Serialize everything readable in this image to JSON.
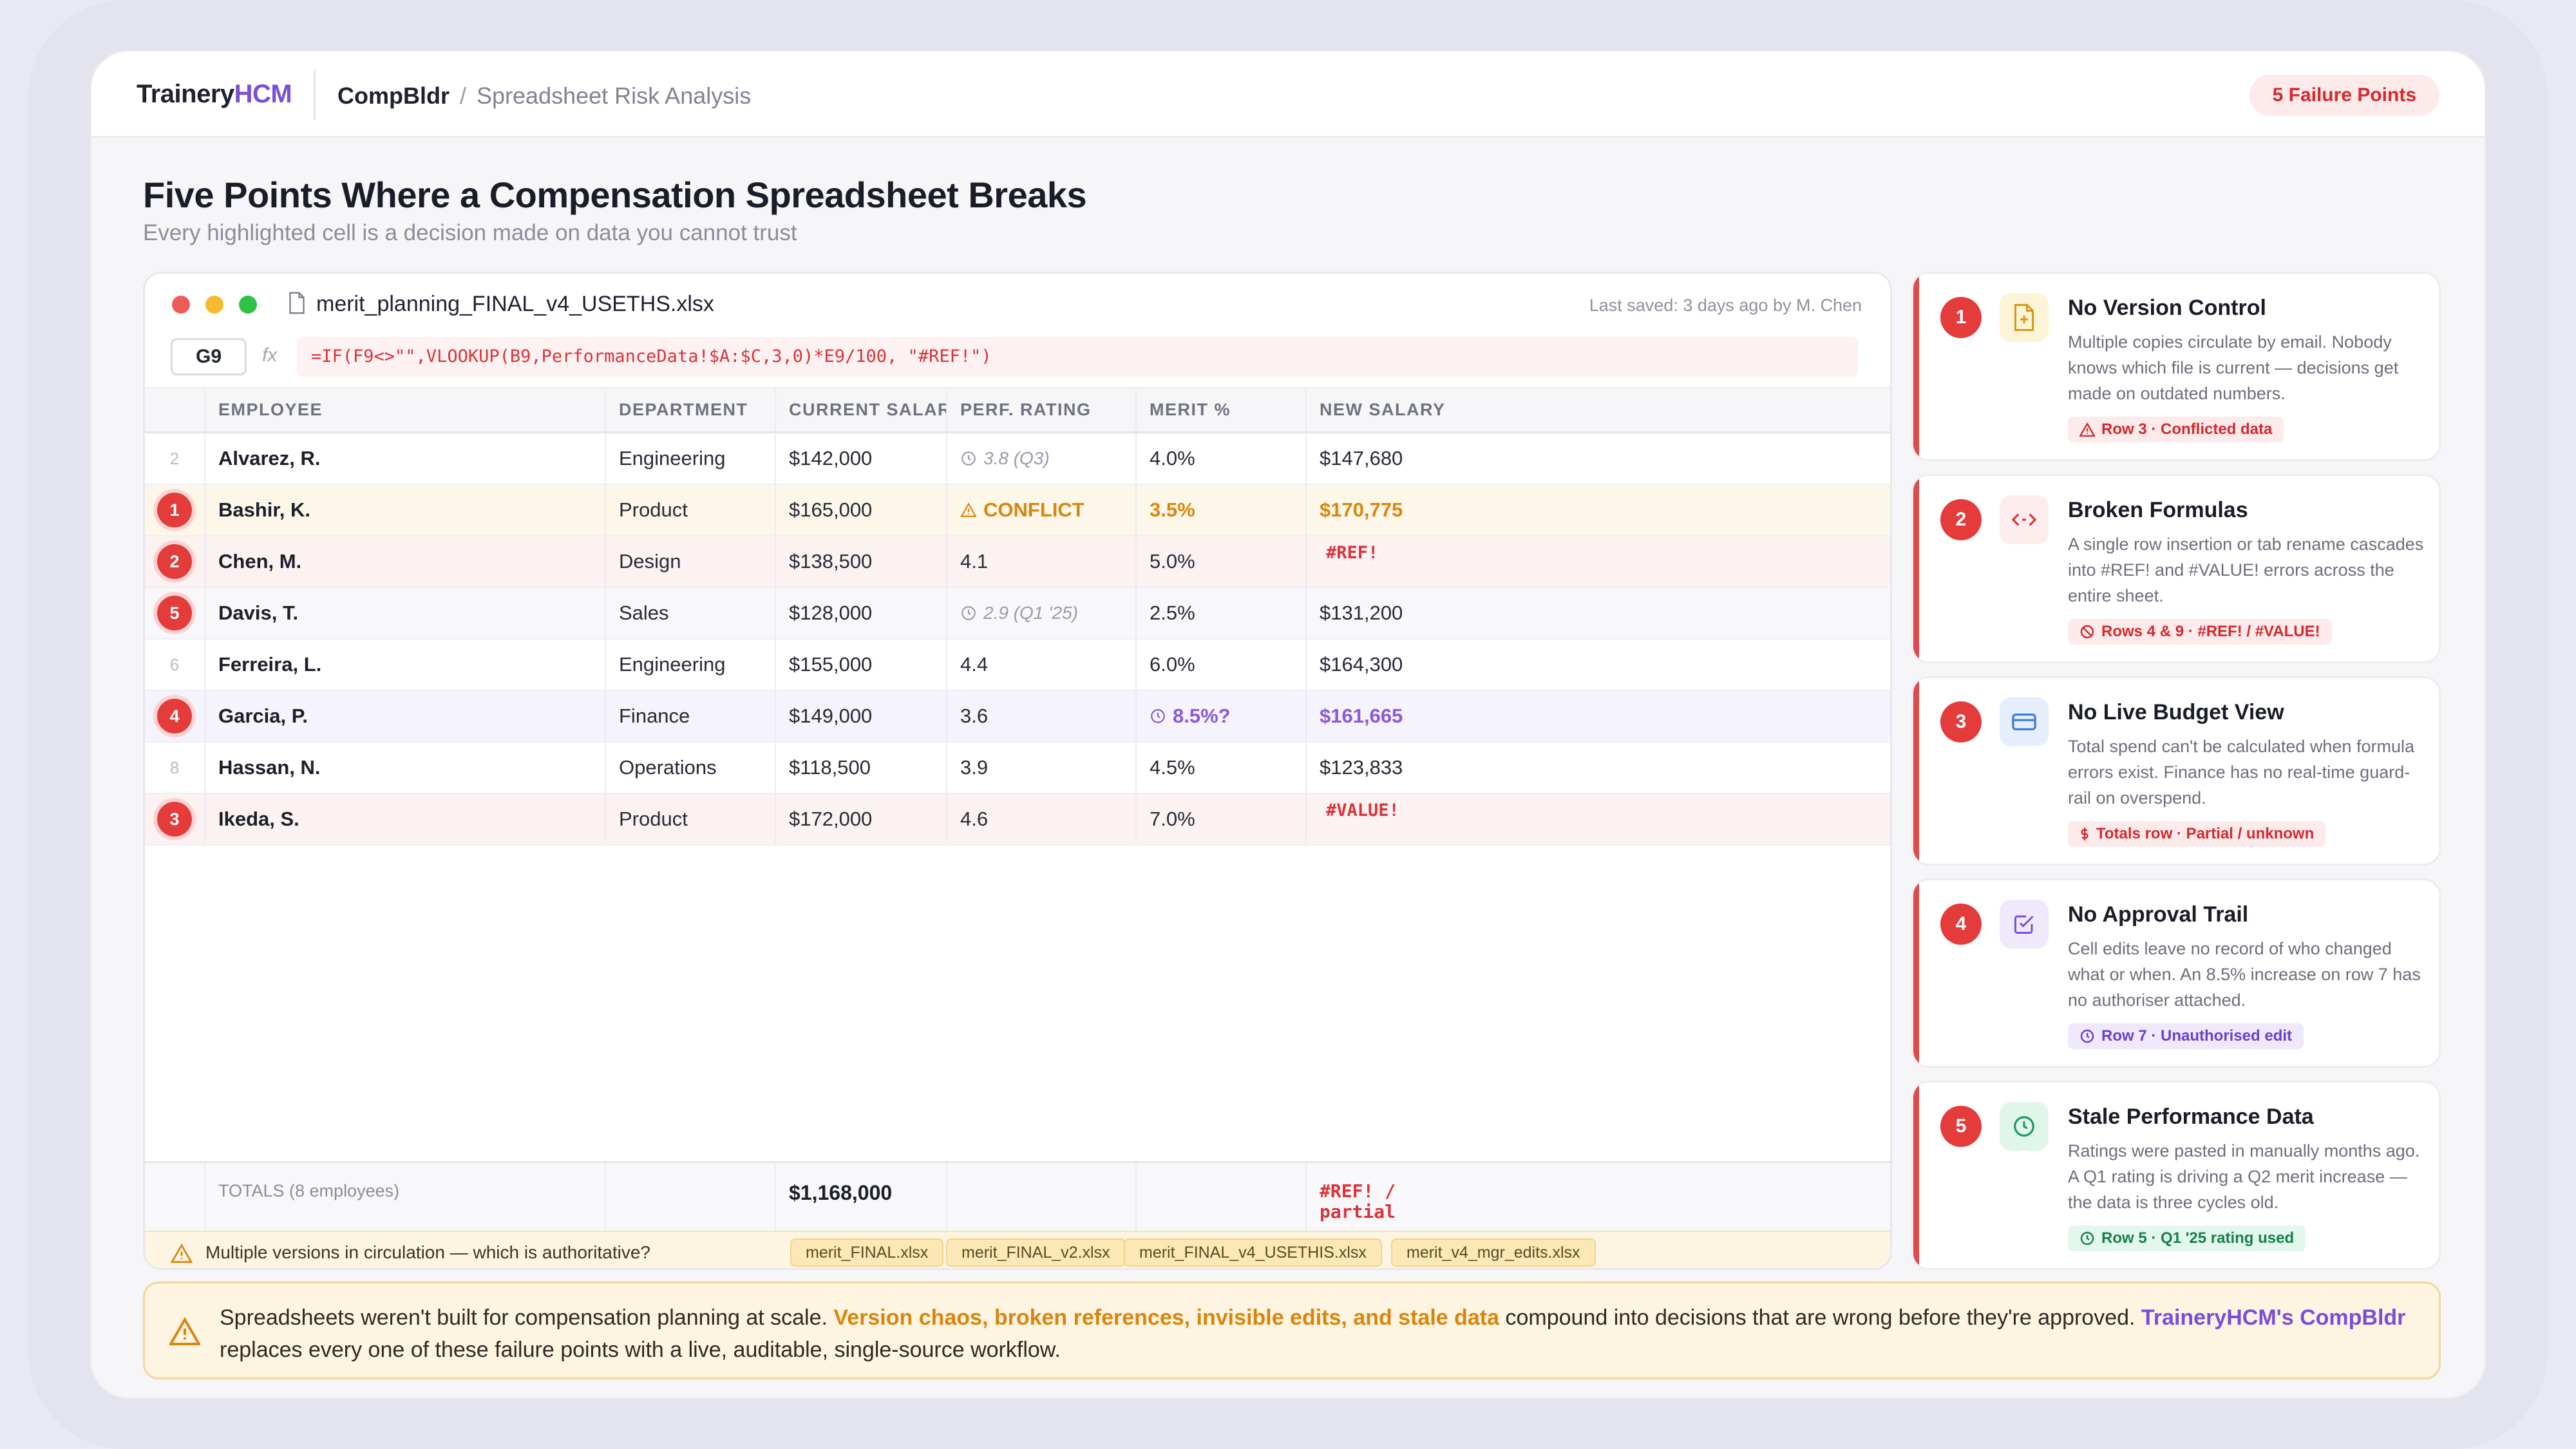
{
  "brand": {
    "logo_part1": "Trainery",
    "logo_part2": "HCM"
  },
  "breadcrumb": {
    "app": "CompBldr",
    "separator": "/",
    "page": "Spreadsheet Risk Analysis"
  },
  "failure_badge": "5 Failure Points",
  "header": {
    "title": "Five Points Where a Compensation Spreadsheet Breaks",
    "subtitle": "Every highlighted cell is a decision made on data you cannot trust"
  },
  "sheet": {
    "file_name": "merit_planning_FINAL_v4_USETHS.xlsx",
    "last_saved": "Last saved: 3 days ago by M. Chen",
    "cell_ref": "G9",
    "fx_label": "fx",
    "formula": "=IF(F9<>\"\",VLOOKUP(B9,PerformanceData!$A:$C,3,0)*E9/100, \"#REF!\")",
    "columns": [
      "EMPLOYEE",
      "DEPARTMENT",
      "CURRENT SALARY",
      "PERF. RATING",
      "MERIT %",
      "NEW SALARY"
    ],
    "rows": [
      {
        "marker": "2",
        "employee": "Alvarez, R.",
        "department": "Engineering",
        "salary": "$142,000",
        "rating": "3.8 (Q3)",
        "merit": "4.0%",
        "new_salary": "$147,680"
      },
      {
        "marker": "1",
        "employee": "Bashir, K.",
        "department": "Product",
        "salary": "$165,000",
        "rating": "CONFLICT",
        "merit": "3.5%",
        "new_salary": "$170,775"
      },
      {
        "marker": "2",
        "employee": "Chen, M.",
        "department": "Design",
        "salary": "$138,500",
        "rating": "4.1",
        "merit": "5.0%",
        "new_salary": "#REF!"
      },
      {
        "marker": "5",
        "employee": "Davis, T.",
        "department": "Sales",
        "salary": "$128,000",
        "rating": "2.9 (Q1 '25)",
        "merit": "2.5%",
        "new_salary": "$131,200"
      },
      {
        "marker": "6",
        "employee": "Ferreira, L.",
        "department": "Engineering",
        "salary": "$155,000",
        "rating": "4.4",
        "merit": "6.0%",
        "new_salary": "$164,300"
      },
      {
        "marker": "4",
        "employee": "Garcia, P.",
        "department": "Finance",
        "salary": "$149,000",
        "rating": "3.6",
        "merit": "8.5%?",
        "new_salary": "$161,665"
      },
      {
        "marker": "8",
        "employee": "Hassan, N.",
        "department": "Operations",
        "salary": "$118,500",
        "rating": "3.9",
        "merit": "4.5%",
        "new_salary": "$123,833"
      },
      {
        "marker": "3",
        "employee": "Ikeda, S.",
        "department": "Product",
        "salary": "$172,000",
        "rating": "4.6",
        "merit": "7.0%",
        "new_salary": "#VALUE!"
      }
    ],
    "totals": {
      "label": "TOTALS (8 employees)",
      "salary": "$1,168,000",
      "new_salary": "#REF! / partial"
    },
    "versions": {
      "message": "Multiple versions in circulation — which is authoritative?",
      "files": [
        "merit_FINAL.xlsx",
        "merit_FINAL_v2.xlsx",
        "merit_FINAL_v4_USETHIS.xlsx",
        "merit_v4_mgr_edits.xlsx"
      ]
    }
  },
  "cards": [
    {
      "num": "1",
      "title": "No Version Control",
      "description": "Multiple copies circulate by email. Nobody knows which file is current — decisions get made on outdated numbers.",
      "tag": "Row 3 · Conflicted data",
      "icon": "file-icon"
    },
    {
      "num": "2",
      "title": "Broken Formulas",
      "description": "A single row insertion or tab rename cascades into #REF! and #VALUE! errors across the entire sheet.",
      "tag": "Rows 4 & 9 · #REF! / #VALUE!",
      "icon": "code-icon"
    },
    {
      "num": "3",
      "title": "No Live Budget View",
      "description": "Total spend can't be calculated when formula errors exist. Finance has no real-time guard-rail on overspend.",
      "tag": "Totals row · Partial / unknown",
      "icon": "card-icon"
    },
    {
      "num": "4",
      "title": "No Approval Trail",
      "description": "Cell edits leave no record of who changed what or when. An 8.5% increase on row 7 has no authoriser attached.",
      "tag": "Row 7 · Unauthorised edit",
      "icon": "checkbox-icon"
    },
    {
      "num": "5",
      "title": "Stale Performance Data",
      "description": "Ratings were pasted in manually months ago. A Q1 rating is driving a Q2 merit increase — the data is three cycles old.",
      "tag": "Row 5 · Q1 '25 rating used",
      "icon": "clock-icon"
    }
  ],
  "banner": {
    "part1": "Spreadsheets weren't built for compensation planning at scale. ",
    "highlight": "Version chaos, broken references, invisible edits, and stale data",
    "part2": " compound into decisions that are wrong before they're approved. ",
    "brand": "TraineryHCM's CompBldr",
    "part3": " replaces every one of these failure points with a live, auditable, single-source workflow."
  },
  "colors": {
    "accent": "#7c4dd8",
    "danger": "#e43b3b",
    "warning": "#d9870c",
    "success": "#178049"
  }
}
